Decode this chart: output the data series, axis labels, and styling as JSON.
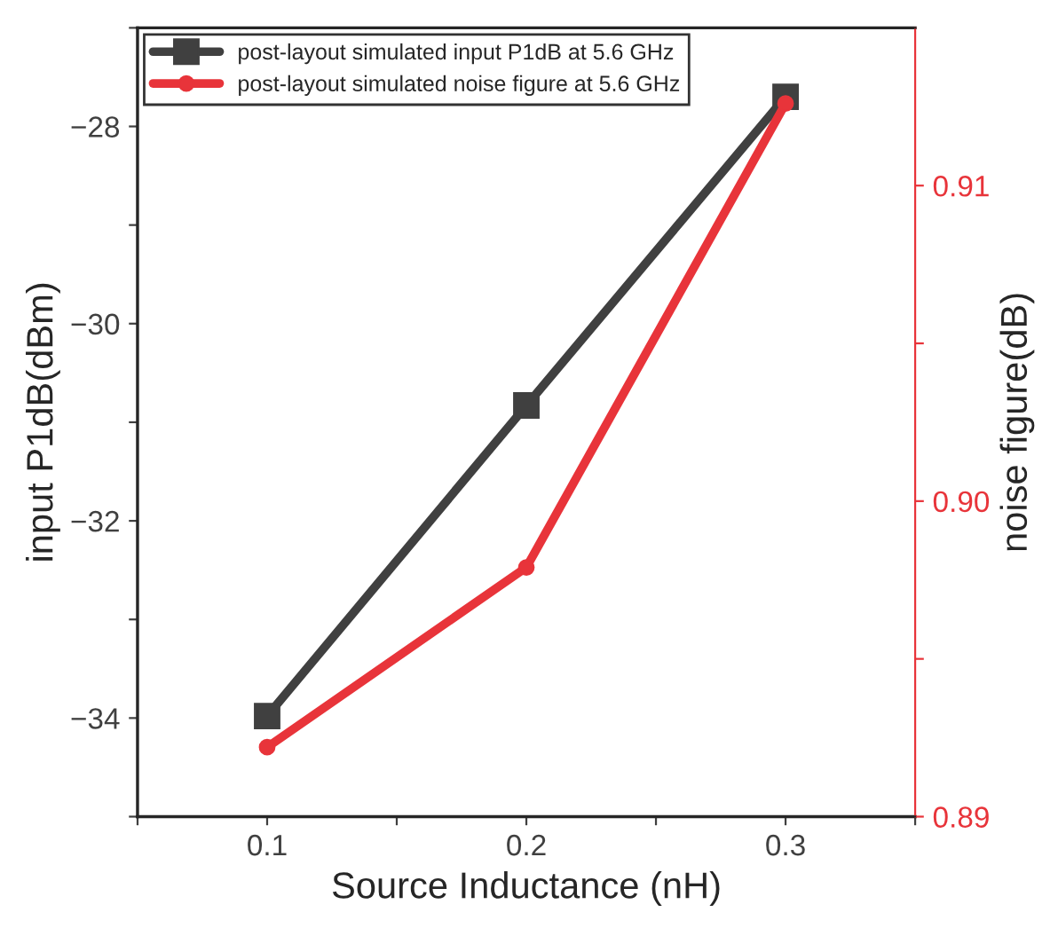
{
  "chart_data": {
    "type": "line",
    "xlabel": "Source Inductance (nH)",
    "ylabel": "input P1dB(dBm)",
    "y2label": "noise figure(dB)",
    "x": [
      0.1,
      0.2,
      0.3
    ],
    "xlim": [
      0.05,
      0.35
    ],
    "xticks": [
      {
        "value": 0.05,
        "label": null
      },
      0.1,
      {
        "value": 0.15,
        "label": null
      },
      0.2,
      {
        "value": 0.25,
        "label": null
      },
      0.3,
      {
        "value": 0.35,
        "label": null
      }
    ],
    "ylim": [
      -35,
      -27
    ],
    "yticks": [
      {
        "value": -35,
        "label": null
      },
      {
        "value": -34,
        "label": "−34"
      },
      {
        "value": -33,
        "label": null
      },
      {
        "value": -32,
        "label": "−32"
      },
      {
        "value": -31,
        "label": null
      },
      {
        "value": -30,
        "label": "−30"
      },
      {
        "value": -29,
        "label": null
      },
      {
        "value": -28,
        "label": "−28"
      },
      {
        "value": -27,
        "label": null
      }
    ],
    "y2lim": [
      0.89,
      0.915
    ],
    "y2ticks": [
      {
        "value": 0.89,
        "label": "0.89"
      },
      {
        "value": 0.895,
        "label": null
      },
      {
        "value": 0.9,
        "label": "0.90"
      },
      {
        "value": 0.905,
        "label": null
      },
      {
        "value": 0.91,
        "label": "0.91"
      }
    ],
    "series": [
      {
        "name": "post-layout simulated input P1dB at 5.6 GHz",
        "color": "#404040",
        "marker": "square",
        "values": [
          -33.98,
          -30.83,
          -27.7
        ]
      },
      {
        "name": "post-layout simulated noise figure at 5.6 GHz",
        "color": "#e8343a",
        "marker": "circle",
        "axis": "y2",
        "values": [
          0.8922,
          0.8979,
          0.9126
        ]
      }
    ],
    "legend": "top left",
    "grid": false,
    "line_style": "solid"
  }
}
